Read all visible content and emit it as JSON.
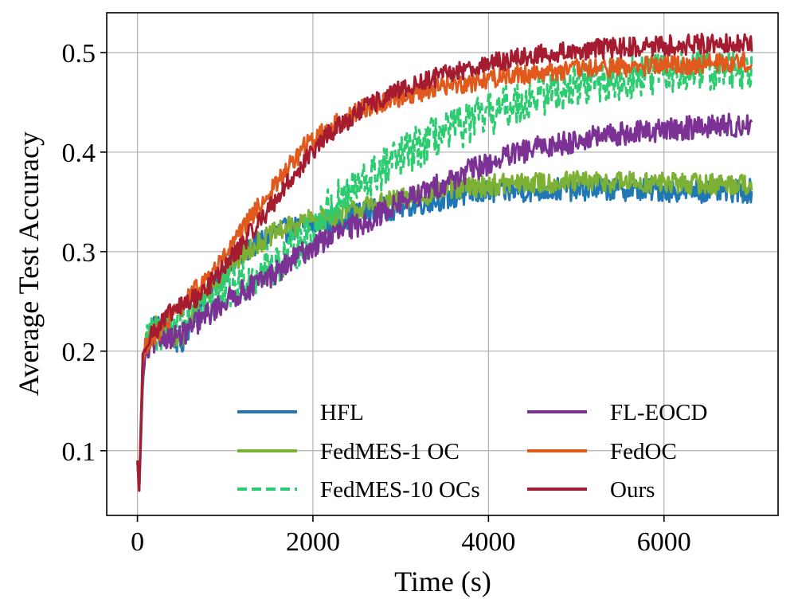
{
  "chart_data": {
    "type": "line",
    "title": "",
    "xlabel": "Time (s)",
    "ylabel": "Average Test Accuracy",
    "xlim": [
      -350,
      7300
    ],
    "ylim": [
      0.035,
      0.54
    ],
    "xticks": [
      0,
      2000,
      4000,
      6000
    ],
    "xtick_labels": [
      "0",
      "2000",
      "4000",
      "6000"
    ],
    "yticks": [
      0.1,
      0.2,
      0.3,
      0.4,
      0.5
    ],
    "ytick_labels": [
      "0.1",
      "0.2",
      "0.3",
      "0.4",
      "0.5"
    ],
    "grid": true,
    "legend": {
      "location": "lower-right",
      "columns": 2
    },
    "series": [
      {
        "name": "HFL",
        "color": "#1f77b4",
        "dash": "solid",
        "noise": 0.012,
        "x": [
          0,
          20,
          40,
          60,
          80,
          120,
          200,
          300,
          400,
          500,
          700,
          1000,
          1300,
          1600,
          1900,
          2200,
          2600,
          3000,
          3400,
          3800,
          4200,
          4600,
          5000,
          5500,
          6000,
          6500,
          7000
        ],
        "y": [
          0.09,
          0.06,
          0.11,
          0.17,
          0.2,
          0.215,
          0.225,
          0.225,
          0.215,
          0.205,
          0.25,
          0.28,
          0.305,
          0.32,
          0.325,
          0.33,
          0.34,
          0.345,
          0.352,
          0.358,
          0.361,
          0.362,
          0.363,
          0.363,
          0.362,
          0.361,
          0.361
        ]
      },
      {
        "name": "FedMES-1 OC",
        "color": "#7cb134",
        "dash": "solid",
        "noise": 0.011,
        "x": [
          0,
          20,
          40,
          60,
          80,
          120,
          200,
          300,
          400,
          500,
          700,
          1000,
          1300,
          1600,
          1900,
          2200,
          2600,
          3000,
          3400,
          3800,
          4200,
          4600,
          5000,
          5500,
          6000,
          6500,
          7000
        ],
        "y": [
          0.09,
          0.06,
          0.12,
          0.175,
          0.2,
          0.215,
          0.225,
          0.225,
          0.215,
          0.21,
          0.25,
          0.28,
          0.305,
          0.32,
          0.33,
          0.335,
          0.345,
          0.352,
          0.36,
          0.365,
          0.368,
          0.369,
          0.37,
          0.37,
          0.369,
          0.368,
          0.368
        ]
      },
      {
        "name": "FedMES-10 OCs",
        "color": "#2ecc71",
        "dash": "dashed",
        "noise": 0.022,
        "x": [
          0,
          20,
          40,
          60,
          80,
          120,
          200,
          300,
          400,
          500,
          700,
          1000,
          1300,
          1600,
          1900,
          2200,
          2600,
          3000,
          3400,
          3800,
          4200,
          4600,
          5000,
          5500,
          6000,
          6500,
          7000
        ],
        "y": [
          0.09,
          0.06,
          0.12,
          0.17,
          0.2,
          0.21,
          0.215,
          0.225,
          0.23,
          0.235,
          0.245,
          0.26,
          0.275,
          0.29,
          0.31,
          0.345,
          0.37,
          0.395,
          0.415,
          0.43,
          0.445,
          0.458,
          0.467,
          0.474,
          0.479,
          0.482,
          0.485
        ]
      },
      {
        "name": "FL-EOCD",
        "color": "#7b3294",
        "dash": "solid",
        "noise": 0.012,
        "x": [
          0,
          20,
          40,
          60,
          80,
          120,
          200,
          300,
          400,
          500,
          700,
          1000,
          1300,
          1600,
          1900,
          2200,
          2600,
          3000,
          3400,
          3800,
          4200,
          4600,
          5000,
          5500,
          6000,
          6500,
          7000
        ],
        "y": [
          0.09,
          0.06,
          0.12,
          0.17,
          0.19,
          0.2,
          0.21,
          0.215,
          0.215,
          0.215,
          0.23,
          0.25,
          0.265,
          0.28,
          0.3,
          0.315,
          0.33,
          0.35,
          0.365,
          0.382,
          0.395,
          0.405,
          0.412,
          0.418,
          0.422,
          0.426,
          0.427
        ]
      },
      {
        "name": "FedOC",
        "color": "#e05a1e",
        "dash": "solid",
        "noise": 0.01,
        "x": [
          0,
          20,
          40,
          60,
          80,
          120,
          200,
          300,
          400,
          500,
          700,
          1000,
          1300,
          1600,
          1900,
          2200,
          2600,
          3000,
          3400,
          3800,
          4200,
          4600,
          5000,
          5500,
          6000,
          6500,
          7000
        ],
        "y": [
          0.09,
          0.06,
          0.13,
          0.185,
          0.2,
          0.21,
          0.215,
          0.225,
          0.235,
          0.245,
          0.265,
          0.295,
          0.335,
          0.37,
          0.405,
          0.425,
          0.445,
          0.455,
          0.465,
          0.47,
          0.477,
          0.48,
          0.483,
          0.485,
          0.487,
          0.489,
          0.491
        ]
      },
      {
        "name": "Ours",
        "color": "#a51c30",
        "dash": "solid",
        "noise": 0.01,
        "x": [
          0,
          20,
          40,
          60,
          80,
          120,
          200,
          300,
          400,
          500,
          700,
          1000,
          1300,
          1600,
          1900,
          2200,
          2600,
          3000,
          3400,
          3800,
          4200,
          4600,
          5000,
          5500,
          6000,
          6500,
          7000
        ],
        "y": [
          0.09,
          0.06,
          0.13,
          0.19,
          0.205,
          0.215,
          0.22,
          0.23,
          0.24,
          0.245,
          0.255,
          0.285,
          0.32,
          0.355,
          0.39,
          0.42,
          0.445,
          0.462,
          0.475,
          0.485,
          0.492,
          0.498,
          0.502,
          0.505,
          0.507,
          0.509,
          0.51
        ]
      }
    ]
  }
}
